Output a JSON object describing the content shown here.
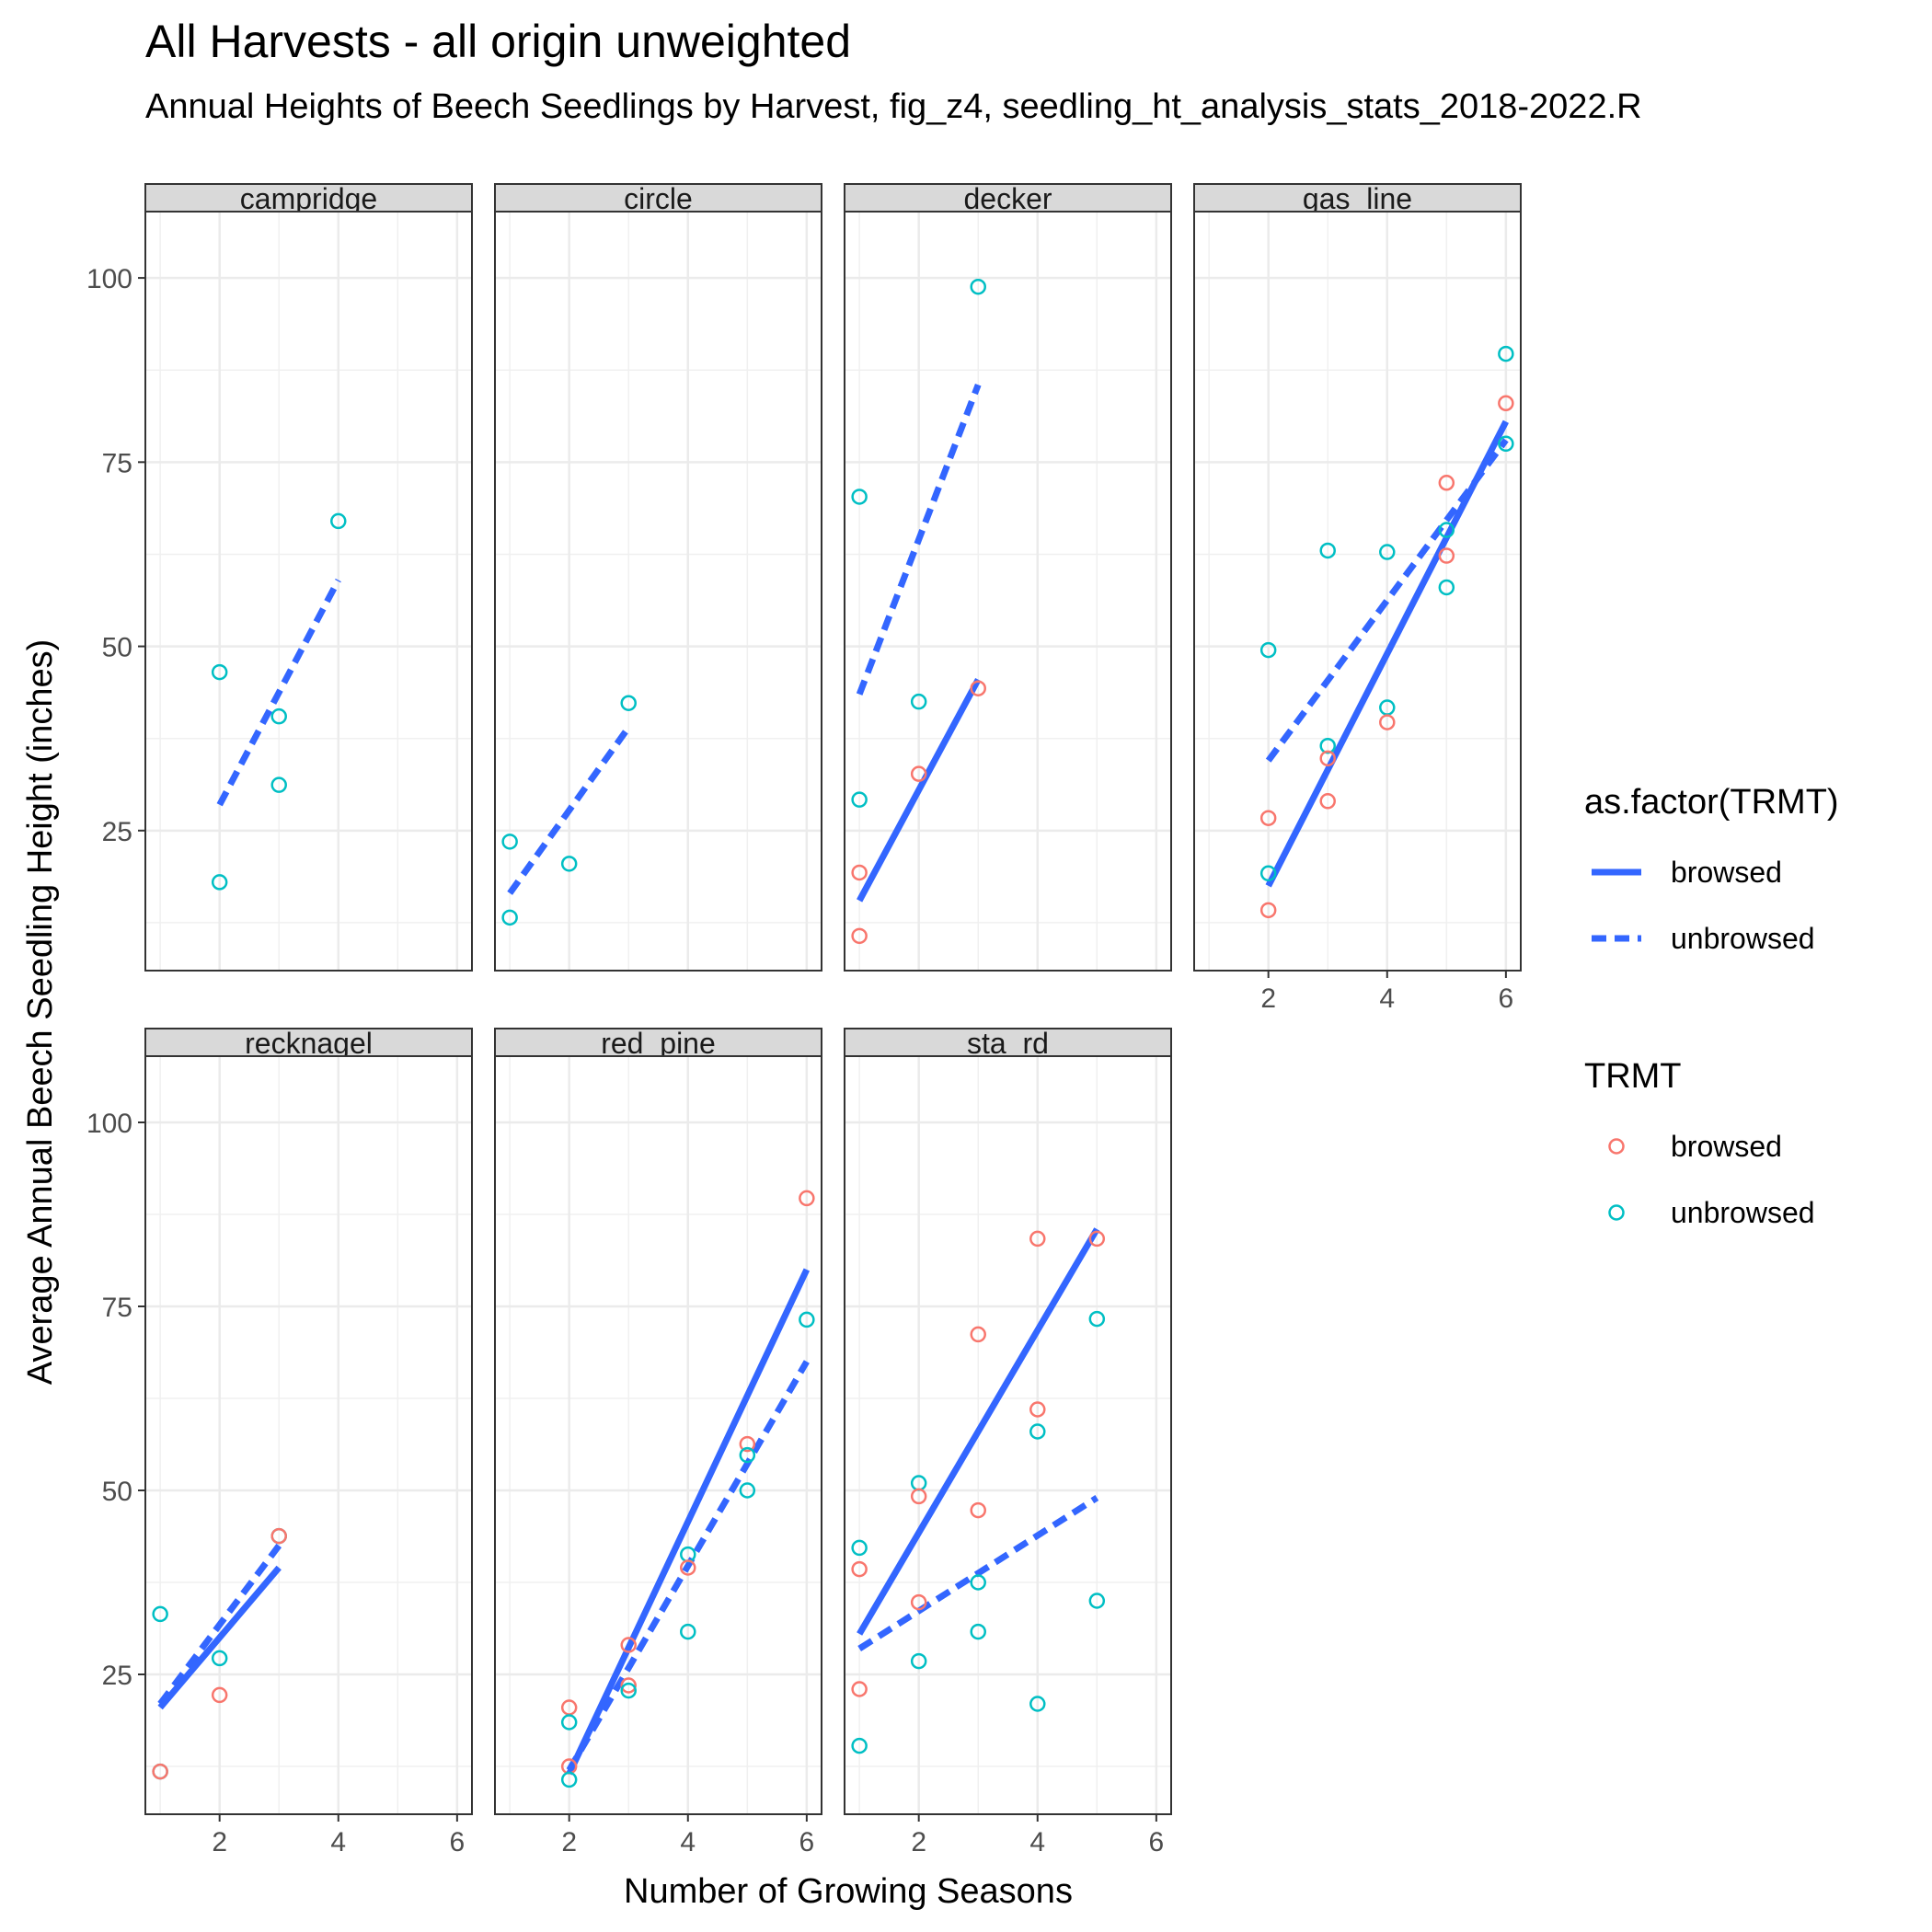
{
  "chart_data": {
    "type": "scatter",
    "title": "All Harvests - all origin unweighted",
    "subtitle": "Annual Heights of Beech Seedlings by Harvest, fig_z4, seedling_ht_analysis_stats_2018-2022.R",
    "xlabel": "Number of Growing Seasons",
    "ylabel": "Average Annual Beech Seedling Height (inches)",
    "xlim": [
      0.75,
      6.25
    ],
    "ylim": [
      6,
      109
    ],
    "x_ticks": [
      2,
      4,
      6
    ],
    "y_ticks": [
      25,
      50,
      75,
      100
    ],
    "grid": true,
    "facets_layout": "4 columns, 2 rows (facet_wrap)",
    "colors": {
      "browsed": "#F8766D",
      "unbrowsed": "#00BFC4",
      "fit_line": "#3366FF"
    },
    "legend": [
      {
        "title": "as.factor(TRMT)",
        "entries": [
          {
            "label": "browsed",
            "linetype": "solid"
          },
          {
            "label": "unbrowsed",
            "linetype": "dashed"
          }
        ]
      },
      {
        "title": "TRMT",
        "entries": [
          {
            "label": "browsed",
            "color": "#F8766D"
          },
          {
            "label": "unbrowsed",
            "color": "#00BFC4"
          }
        ]
      }
    ],
    "legend_position": "right",
    "facets": [
      {
        "name": "campridge",
        "points": [
          {
            "x": 2,
            "y": 46.5,
            "trmt": "unbrowsed"
          },
          {
            "x": 2,
            "y": 18,
            "trmt": "unbrowsed"
          },
          {
            "x": 3,
            "y": 40.5,
            "trmt": "unbrowsed"
          },
          {
            "x": 3,
            "y": 31.2,
            "trmt": "unbrowsed"
          },
          {
            "x": 4,
            "y": 67,
            "trmt": "unbrowsed"
          }
        ],
        "fits": [
          {
            "trmt": "unbrowsed",
            "x": [
              2,
              4
            ],
            "y": [
              28.5,
              59
            ]
          }
        ]
      },
      {
        "name": "circle",
        "points": [
          {
            "x": 1,
            "y": 23.5,
            "trmt": "unbrowsed"
          },
          {
            "x": 1,
            "y": 13.2,
            "trmt": "unbrowsed"
          },
          {
            "x": 2,
            "y": 20.5,
            "trmt": "unbrowsed"
          },
          {
            "x": 3,
            "y": 42.3,
            "trmt": "unbrowsed"
          }
        ],
        "fits": [
          {
            "trmt": "unbrowsed",
            "x": [
              1,
              3
            ],
            "y": [
              16.5,
              39
            ]
          }
        ]
      },
      {
        "name": "decker",
        "points": [
          {
            "x": 1,
            "y": 70.3,
            "trmt": "unbrowsed"
          },
          {
            "x": 1,
            "y": 29.2,
            "trmt": "unbrowsed"
          },
          {
            "x": 1,
            "y": 19.3,
            "trmt": "browsed"
          },
          {
            "x": 1,
            "y": 10.7,
            "trmt": "browsed"
          },
          {
            "x": 2,
            "y": 42.5,
            "trmt": "unbrowsed"
          },
          {
            "x": 2,
            "y": 32.7,
            "trmt": "browsed"
          },
          {
            "x": 3,
            "y": 98.8,
            "trmt": "unbrowsed"
          },
          {
            "x": 3,
            "y": 44.3,
            "trmt": "browsed"
          }
        ],
        "fits": [
          {
            "trmt": "unbrowsed",
            "x": [
              1,
              3
            ],
            "y": [
              43.5,
              85.5
            ]
          },
          {
            "trmt": "browsed",
            "x": [
              1,
              3
            ],
            "y": [
              15.5,
              45.5
            ]
          }
        ]
      },
      {
        "name": "gas_line",
        "points": [
          {
            "x": 2,
            "y": 49.5,
            "trmt": "unbrowsed"
          },
          {
            "x": 2,
            "y": 19.2,
            "trmt": "unbrowsed"
          },
          {
            "x": 2,
            "y": 26.7,
            "trmt": "browsed"
          },
          {
            "x": 2,
            "y": 14.2,
            "trmt": "browsed"
          },
          {
            "x": 3,
            "y": 63,
            "trmt": "unbrowsed"
          },
          {
            "x": 3,
            "y": 36.5,
            "trmt": "unbrowsed"
          },
          {
            "x": 3,
            "y": 34.8,
            "trmt": "browsed"
          },
          {
            "x": 3,
            "y": 29,
            "trmt": "browsed"
          },
          {
            "x": 4,
            "y": 62.8,
            "trmt": "unbrowsed"
          },
          {
            "x": 4,
            "y": 41.7,
            "trmt": "unbrowsed"
          },
          {
            "x": 4,
            "y": 39.7,
            "trmt": "browsed"
          },
          {
            "x": 5,
            "y": 72.2,
            "trmt": "browsed"
          },
          {
            "x": 5,
            "y": 65.8,
            "trmt": "unbrowsed"
          },
          {
            "x": 5,
            "y": 62.3,
            "trmt": "browsed"
          },
          {
            "x": 5,
            "y": 58,
            "trmt": "unbrowsed"
          },
          {
            "x": 6,
            "y": 89.7,
            "trmt": "unbrowsed"
          },
          {
            "x": 6,
            "y": 83,
            "trmt": "browsed"
          },
          {
            "x": 6,
            "y": 77.5,
            "trmt": "unbrowsed"
          }
        ],
        "fits": [
          {
            "trmt": "unbrowsed",
            "x": [
              2,
              6
            ],
            "y": [
              34.5,
              78
            ]
          },
          {
            "trmt": "browsed",
            "x": [
              2,
              6
            ],
            "y": [
              17.5,
              80.5
            ]
          }
        ]
      },
      {
        "name": "recknagel",
        "points": [
          {
            "x": 1,
            "y": 33.2,
            "trmt": "unbrowsed"
          },
          {
            "x": 1,
            "y": 11.8,
            "trmt": "unbrowsed"
          },
          {
            "x": 1,
            "y": 11.8,
            "trmt": "browsed"
          },
          {
            "x": 2,
            "y": 27.2,
            "trmt": "unbrowsed"
          },
          {
            "x": 2,
            "y": 22.2,
            "trmt": "browsed"
          },
          {
            "x": 3,
            "y": 43.8,
            "trmt": "unbrowsed"
          },
          {
            "x": 3,
            "y": 43.8,
            "trmt": "browsed"
          }
        ],
        "fits": [
          {
            "trmt": "unbrowsed",
            "x": [
              1,
              3
            ],
            "y": [
              21,
              42.5
            ]
          },
          {
            "trmt": "browsed",
            "x": [
              1,
              3
            ],
            "y": [
              20.5,
              39.5
            ]
          }
        ]
      },
      {
        "name": "red_pine",
        "points": [
          {
            "x": 2,
            "y": 20.5,
            "trmt": "browsed"
          },
          {
            "x": 2,
            "y": 18.5,
            "trmt": "unbrowsed"
          },
          {
            "x": 2,
            "y": 12.5,
            "trmt": "browsed"
          },
          {
            "x": 2,
            "y": 10.7,
            "trmt": "unbrowsed"
          },
          {
            "x": 3,
            "y": 29,
            "trmt": "browsed"
          },
          {
            "x": 3,
            "y": 23.5,
            "trmt": "browsed"
          },
          {
            "x": 3,
            "y": 22.8,
            "trmt": "unbrowsed"
          },
          {
            "x": 4,
            "y": 41.3,
            "trmt": "unbrowsed"
          },
          {
            "x": 4,
            "y": 39.5,
            "trmt": "browsed"
          },
          {
            "x": 4,
            "y": 30.8,
            "trmt": "unbrowsed"
          },
          {
            "x": 5,
            "y": 56.3,
            "trmt": "browsed"
          },
          {
            "x": 5,
            "y": 54.8,
            "trmt": "unbrowsed"
          },
          {
            "x": 5,
            "y": 50,
            "trmt": "unbrowsed"
          },
          {
            "x": 6,
            "y": 89.7,
            "trmt": "browsed"
          },
          {
            "x": 6,
            "y": 73.2,
            "trmt": "unbrowsed"
          }
        ],
        "fits": [
          {
            "trmt": "unbrowsed",
            "x": [
              2,
              6
            ],
            "y": [
              12,
              67.5
            ]
          },
          {
            "trmt": "browsed",
            "x": [
              2,
              6
            ],
            "y": [
              11.5,
              80
            ]
          }
        ]
      },
      {
        "name": "sta_rd",
        "points": [
          {
            "x": 1,
            "y": 42.2,
            "trmt": "unbrowsed"
          },
          {
            "x": 1,
            "y": 39.3,
            "trmt": "browsed"
          },
          {
            "x": 1,
            "y": 23,
            "trmt": "browsed"
          },
          {
            "x": 1,
            "y": 15.3,
            "trmt": "unbrowsed"
          },
          {
            "x": 2,
            "y": 51,
            "trmt": "unbrowsed"
          },
          {
            "x": 2,
            "y": 49.2,
            "trmt": "browsed"
          },
          {
            "x": 2,
            "y": 34.8,
            "trmt": "browsed"
          },
          {
            "x": 2,
            "y": 26.8,
            "trmt": "unbrowsed"
          },
          {
            "x": 3,
            "y": 71.2,
            "trmt": "browsed"
          },
          {
            "x": 3,
            "y": 47.3,
            "trmt": "browsed"
          },
          {
            "x": 3,
            "y": 37.5,
            "trmt": "unbrowsed"
          },
          {
            "x": 3,
            "y": 30.8,
            "trmt": "unbrowsed"
          },
          {
            "x": 4,
            "y": 84.2,
            "trmt": "browsed"
          },
          {
            "x": 4,
            "y": 61,
            "trmt": "browsed"
          },
          {
            "x": 4,
            "y": 58,
            "trmt": "unbrowsed"
          },
          {
            "x": 4,
            "y": 21,
            "trmt": "unbrowsed"
          },
          {
            "x": 5,
            "y": 84.2,
            "trmt": "browsed"
          },
          {
            "x": 5,
            "y": 73.3,
            "trmt": "unbrowsed"
          },
          {
            "x": 5,
            "y": 35,
            "trmt": "unbrowsed"
          }
        ],
        "fits": [
          {
            "trmt": "unbrowsed",
            "x": [
              1,
              5
            ],
            "y": [
              28.5,
              49
            ]
          },
          {
            "trmt": "browsed",
            "x": [
              1,
              5
            ],
            "y": [
              30.5,
              85.5
            ]
          }
        ]
      }
    ]
  }
}
